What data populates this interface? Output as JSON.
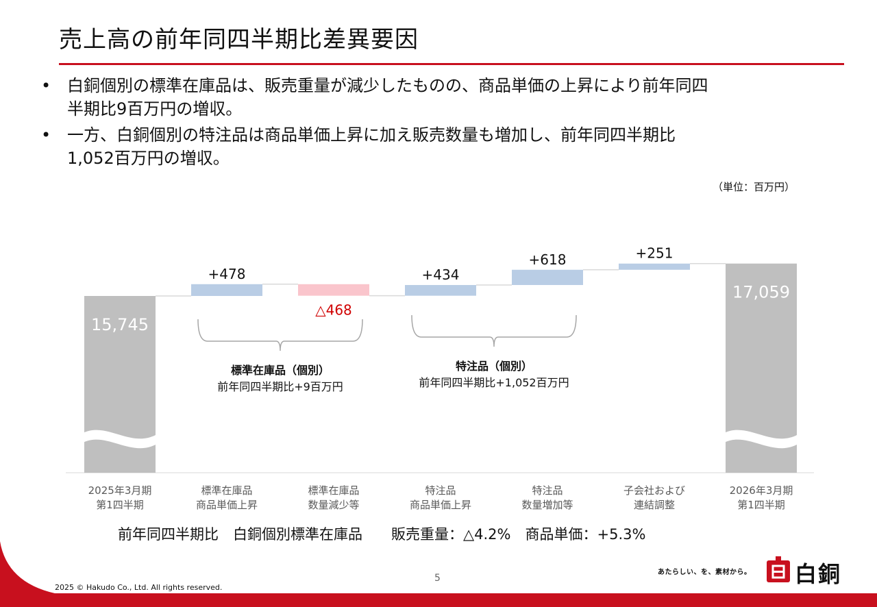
{
  "header": {
    "title": "売上高の前年同四半期比差異要因"
  },
  "bullets": [
    {
      "marker": "•",
      "lines": [
        "白銅個別の標準在庫品は、販売重量が減少したものの、商品単価の上昇により前年同四",
        "半期比9百万円の増収。"
      ]
    },
    {
      "marker": "•",
      "lines": [
        "一方、白銅個別の特注品は商品単価上昇に加え販売数量も増加し、前年同四半期比",
        "1,052百万円の増収。"
      ]
    }
  ],
  "unit_label": "（単位：百万円）",
  "chart_data": {
    "type": "bar",
    "subtype": "waterfall",
    "categories": [
      [
        "2025年3月期",
        "第1四半期"
      ],
      [
        "標準在庫品",
        "商品単価上昇"
      ],
      [
        "標準在庫品",
        "数量減少等"
      ],
      [
        "特注品",
        "商品単価上昇"
      ],
      [
        "特注品",
        "数量増加等"
      ],
      [
        "子会社および",
        "連結調整"
      ],
      [
        "2026年3月期",
        "第1四半期"
      ]
    ],
    "values": [
      15745,
      478,
      -468,
      434,
      618,
      251,
      17059
    ],
    "kinds": [
      "total",
      "delta",
      "delta",
      "delta",
      "delta",
      "delta",
      "total"
    ],
    "data_labels": [
      "15,745",
      "+478",
      "△468",
      "+434",
      "+618",
      "+251",
      "17,059"
    ],
    "axis_break": true,
    "groups": [
      {
        "title": "標準在庫品（個別）",
        "subtitle": "前年同四半期比+9百万円",
        "span": [
          1,
          2
        ]
      },
      {
        "title": "特注品（個別）",
        "subtitle": "前年同四半期比+1,052百万円",
        "span": [
          3,
          4
        ]
      }
    ],
    "colors": {
      "total": "#bfbfbf",
      "increase": "#b9cde5",
      "decrease": "#fac5cc",
      "negative_label": "#d00000",
      "total_label": "#ffffff",
      "connector": "#d9d9d9"
    }
  },
  "footnote": "前年同四半期比　白銅個別標準在庫品　　販売重量：△4.2%　商品単価：+5.3%",
  "footer": {
    "page_number": "5",
    "copyright": "2025 © Hakudo Co., Ltd. All rights reserved.",
    "tagline": "あたらしい、を、素材から。",
    "logo_text": "白銅"
  },
  "brand_color": "#c8101e"
}
